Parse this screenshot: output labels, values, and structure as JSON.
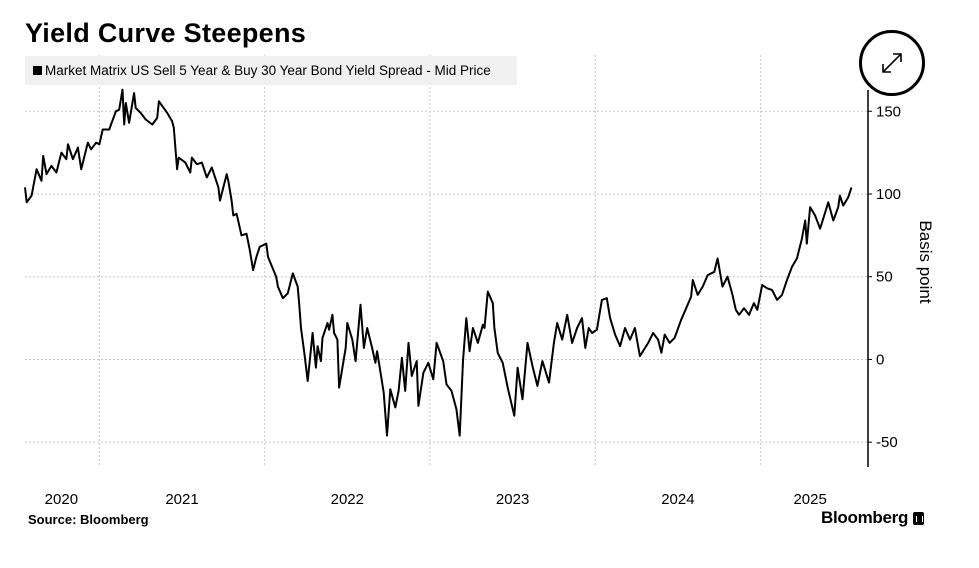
{
  "chart_data": {
    "type": "line",
    "title": "Yield Curve Steepens",
    "legend": [
      {
        "label": "Market Matrix US Sell 5 Year & Buy 30 Year Bond Yield Spread - Mid Price",
        "color": "#000000"
      }
    ],
    "legend_placement": "top-left",
    "ylabel": "Basis point",
    "xlabel": "",
    "xlim": [
      2020.55,
      2025.65
    ],
    "ylim": [
      -65,
      184
    ],
    "y_ticks": [
      150,
      100,
      50,
      0,
      -50
    ],
    "y_tick_labels": [
      "150",
      "100",
      "50",
      "0",
      "-50"
    ],
    "x_gridlines": [
      2021,
      2022,
      2023,
      2024,
      2025
    ],
    "x_tick_labels": [
      {
        "label": "2020",
        "at": 2020.77
      },
      {
        "label": "2021",
        "at": 2021.5
      },
      {
        "label": "2022",
        "at": 2022.5
      },
      {
        "label": "2023",
        "at": 2023.5
      },
      {
        "label": "2024",
        "at": 2024.5
      },
      {
        "label": "2025",
        "at": 2025.3
      }
    ],
    "grid": true,
    "series": [
      {
        "name": "Market Matrix US Sell 5 Year & Buy 30 Year Bond Yield Spread - Mid Price",
        "x": [
          2020.55,
          2020.56,
          2020.59,
          2020.62,
          2020.65,
          2020.66,
          2020.68,
          2020.71,
          2020.74,
          2020.77,
          2020.8,
          2020.81,
          2020.84,
          2020.87,
          2020.89,
          2020.93,
          2020.95,
          2020.98,
          2021.0,
          2021.02,
          2021.06,
          2021.07,
          2021.1,
          2021.12,
          2021.14,
          2021.15,
          2021.16,
          2021.18,
          2021.21,
          2021.22,
          2021.25,
          2021.28,
          2021.32,
          2021.35,
          2021.36,
          2021.41,
          2021.44,
          2021.45,
          2021.47,
          2021.48,
          2021.52,
          2021.55,
          2021.56,
          2021.59,
          2021.62,
          2021.65,
          2021.68,
          2021.72,
          2021.73,
          2021.77,
          2021.78,
          2021.8,
          2021.81,
          2021.83,
          2021.86,
          2021.89,
          2021.91,
          2021.93,
          2021.95,
          2021.97,
          2022.01,
          2022.02,
          2022.07,
          2022.08,
          2022.11,
          2022.14,
          2022.17,
          2022.2,
          2022.21,
          2022.22,
          2022.24,
          2022.26,
          2022.29,
          2022.31,
          2022.32,
          2022.34,
          2022.35,
          2022.38,
          2022.39,
          2022.41,
          2022.42,
          2022.44,
          2022.45,
          2022.47,
          2022.49,
          2022.5,
          2022.53,
          2022.55,
          2022.58,
          2022.6,
          2022.62,
          2022.65,
          2022.67,
          2022.68,
          2022.72,
          2022.74,
          2022.76,
          2022.79,
          2022.81,
          2022.83,
          2022.85,
          2022.87,
          2022.89,
          2022.92,
          2022.93,
          2022.96,
          2022.99,
          2023.02,
          2023.04,
          2023.08,
          2023.1,
          2023.13,
          2023.16,
          2023.18,
          2023.2,
          2023.22,
          2023.24,
          2023.26,
          2023.29,
          2023.32,
          2023.33,
          2023.35,
          2023.38,
          2023.39,
          2023.41,
          2023.44,
          2023.47,
          2023.51,
          2023.53,
          2023.56,
          2023.59,
          2023.62,
          2023.65,
          2023.68,
          2023.72,
          2023.75,
          2023.77,
          2023.8,
          2023.83,
          2023.86,
          2023.89,
          2023.92,
          2023.94,
          2023.96,
          2023.98,
          2024.01,
          2024.04,
          2024.07,
          2024.09,
          2024.12,
          2024.15,
          2024.18,
          2024.21,
          2024.24,
          2024.27,
          2024.32,
          2024.35,
          2024.38,
          2024.4,
          2024.42,
          2024.45,
          2024.48,
          2024.52,
          2024.55,
          2024.58,
          2024.59,
          2024.62,
          2024.65,
          2024.68,
          2024.72,
          2024.74,
          2024.77,
          2024.8,
          2024.83,
          2024.85,
          2024.87,
          2024.9,
          2024.93,
          2024.96,
          2024.98,
          2025.01,
          2025.04,
          2025.07,
          2025.1,
          2025.13,
          2025.16,
          2025.19,
          2025.22,
          2025.25,
          2025.27,
          2025.28,
          2025.3,
          2025.33,
          2025.36,
          2025.41,
          2025.44,
          2025.47,
          2025.48,
          2025.5,
          2025.53,
          2025.55
        ],
        "y": [
          104,
          95,
          99,
          115,
          108,
          123,
          112,
          117,
          113,
          125,
          121,
          130,
          121,
          128,
          115,
          131,
          127,
          131,
          130,
          139,
          139,
          142,
          150,
          151,
          163,
          142,
          155,
          143,
          161,
          152,
          149,
          145,
          142,
          146,
          156,
          149,
          144,
          140,
          115,
          122,
          119,
          113,
          122,
          118,
          119,
          110,
          116,
          104,
          96,
          112,
          108,
          96,
          87,
          88,
          75,
          76,
          66,
          54,
          62,
          68,
          70,
          62,
          50,
          44,
          37,
          40,
          52,
          44,
          32,
          19,
          4,
          -13,
          16,
          -5,
          8,
          -1,
          13,
          22,
          18,
          27,
          16,
          12,
          -17,
          -5,
          7,
          22,
          12,
          -1,
          33,
          7,
          19,
          7,
          -2,
          5,
          -20,
          -46,
          -18,
          -29,
          -19,
          1,
          -19,
          10,
          -10,
          -1,
          -28,
          -8,
          -2,
          -12,
          10,
          -1,
          -15,
          -19,
          -30,
          -46,
          -1,
          25,
          5,
          19,
          10,
          21,
          19,
          41,
          34,
          19,
          4,
          -2,
          -17,
          -34,
          -5,
          -24,
          10,
          -4,
          -16,
          -1,
          -14,
          10,
          22,
          12,
          27,
          10,
          19,
          25,
          7,
          19,
          16,
          18,
          36,
          37,
          25,
          15,
          8,
          19,
          12,
          19,
          2,
          10,
          16,
          12,
          4,
          15,
          10,
          13,
          24,
          31,
          38,
          48,
          39,
          44,
          51,
          53,
          61,
          44,
          50,
          39,
          30,
          27,
          31,
          27,
          34,
          30,
          45,
          43,
          42,
          36,
          39,
          48,
          56,
          61,
          73,
          84,
          70,
          92,
          87,
          79,
          95,
          84,
          92,
          99,
          93,
          98,
          104
        ]
      }
    ]
  },
  "source": "Source: Bloomberg",
  "brand": "Bloomberg",
  "expand_button_icon": "expand-arrows-icon"
}
